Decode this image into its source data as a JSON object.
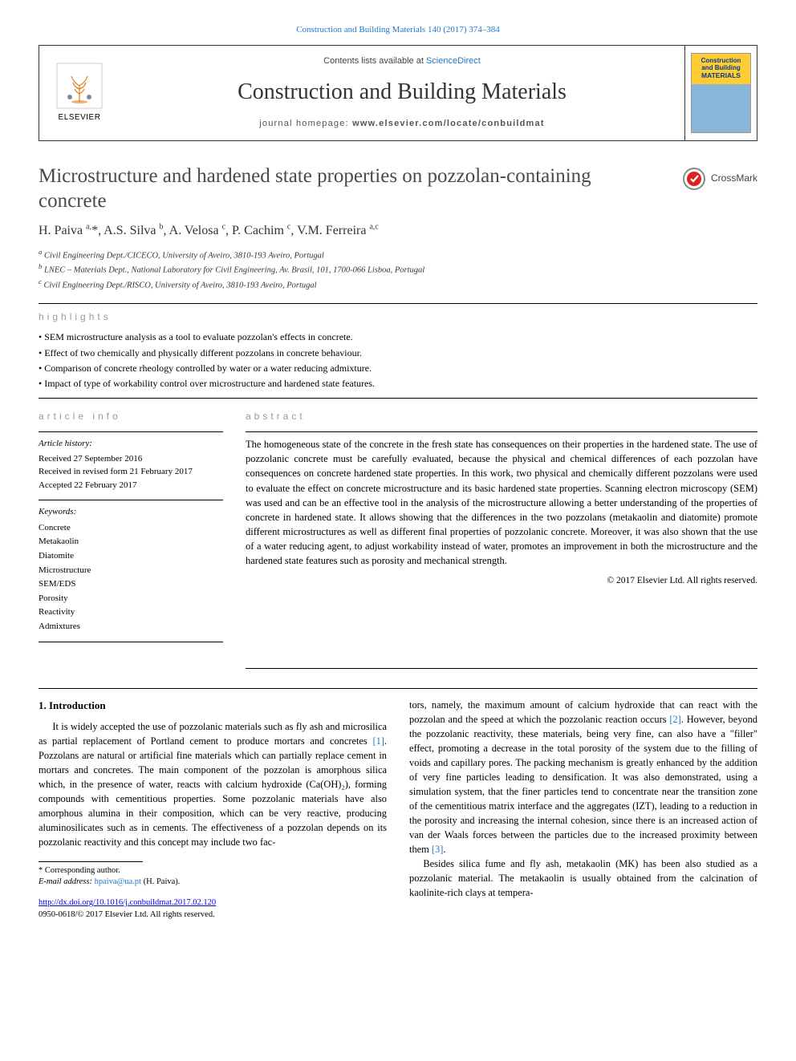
{
  "citation_header": "Construction and Building Materials 140 (2017) 374–384",
  "banner": {
    "contents_prefix": "Contents lists available at ",
    "contents_link": "ScienceDirect",
    "journal_title": "Construction and Building Materials",
    "homepage_label": "journal homepage: ",
    "homepage_url": "www.elsevier.com/locate/conbuildmat",
    "elsevier_label": "ELSEVIER",
    "cover_line1": "Construction",
    "cover_line2": "and Building",
    "cover_line3": "MATERIALS",
    "cover_title_bg": "#ffcc33",
    "cover_title_color": "#003d8f",
    "cover_body_bg": "#88b5d8"
  },
  "crossmark_label": "CrossMark",
  "title": "Microstructure and hardened state properties on pozzolan-containing concrete",
  "authors_html": "H. Paiva <sup>a,</sup>*, A.S. Silva <sup>b</sup>, A. Velosa <sup>c</sup>, P. Cachim <sup>c</sup>, V.M. Ferreira <sup>a,c</sup>",
  "affiliations": [
    "a Civil Engineering Dept./CICECO, University of Aveiro, 3810-193 Aveiro, Portugal",
    "b LNEC – Materials Dept., National Laboratory for Civil Engineering, Av. Brasil, 101, 1700-066 Lisboa, Portugal",
    "c Civil Engineering Dept./RISCO, University of Aveiro, 3810-193 Aveiro, Portugal"
  ],
  "highlights_label": "highlights",
  "highlights": [
    "SEM microstructure analysis as a tool to evaluate pozzolan's effects in concrete.",
    "Effect of two chemically and physically different pozzolans in concrete behaviour.",
    "Comparison of concrete rheology controlled by water or a water reducing admixture.",
    "Impact of type of workability control over microstructure and hardened state features."
  ],
  "article_info_label": "article info",
  "article_history_label": "Article history:",
  "article_history": [
    "Received 27 September 2016",
    "Received in revised form 21 February 2017",
    "Accepted 22 February 2017"
  ],
  "keywords_label": "Keywords:",
  "keywords": [
    "Concrete",
    "Metakaolin",
    "Diatomite",
    "Microstructure",
    "SEM/EDS",
    "Porosity",
    "Reactivity",
    "Admixtures"
  ],
  "abstract_label": "abstract",
  "abstract_text": "The homogeneous state of the concrete in the fresh state has consequences on their properties in the hardened state. The use of pozzolanic concrete must be carefully evaluated, because the physical and chemical differences of each pozzolan have consequences on concrete hardened state properties. In this work, two physical and chemically different pozzolans were used to evaluate the effect on concrete microstructure and its basic hardened state properties. Scanning electron microscopy (SEM) was used and can be an effective tool in the analysis of the microstructure allowing a better understanding of the properties of concrete in hardened state. It allows showing that the differences in the two pozzolans (metakaolin and diatomite) promote different microstructures as well as different final properties of pozzolanic concrete. Moreover, it was also shown that the use of a water reducing agent, to adjust workability instead of water, promotes an improvement in both the microstructure and the hardened state features such as porosity and mechanical strength.",
  "abstract_copyright": "© 2017 Elsevier Ltd. All rights reserved.",
  "intro_heading": "1. Introduction",
  "intro_para1": "It is widely accepted the use of pozzolanic materials such as fly ash and microsilica as partial replacement of Portland cement to produce mortars and concretes [1]. Pozzolans are natural or artificial fine materials which can partially replace cement in mortars and concretes. The main component of the pozzolan is amorphous silica which, in the presence of water, reacts with calcium hydroxide (Ca(OH)₂), forming compounds with cementitious properties. Some pozzolanic materials have also amorphous alumina in their composition, which can be very reactive, producing aluminosilicates such as in cements. The effectiveness of a pozzolan depends on its pozzolanic reactivity and this concept may include two fac-",
  "intro_para2_prefix": "tors, namely, the maximum amount of calcium hydroxide that can react with the pozzolan and the speed at which the pozzolanic reaction occurs ",
  "intro_para2_ref": "[2]",
  "intro_para2_rest": ". However, beyond the pozzolanic reactivity, these materials, being very fine, can also have a \"filler\" effect, promoting a decrease in the total porosity of the system due to the filling of voids and capillary pores. The packing mechanism is greatly enhanced by the addition of very fine particles leading to densification. It was also demonstrated, using a simulation system, that the finer particles tend to concentrate near the transition zone of the cementitious matrix interface and the aggregates (IZT), leading to a reduction in the porosity and increasing the internal cohesion, since there is an increased action of van der Waals forces between the particles due to the increased proximity between them ",
  "intro_para2_ref2": "[3]",
  "intro_para2_end": ".",
  "intro_para3": "Besides silica fume and fly ash, metakaolin (MK) has been also studied as a pozzolanic material. The metakaolin is usually obtained from the calcination of kaolinite-rich clays at tempera-",
  "corresponding_label": "* Corresponding author.",
  "email_label": "E-mail address: ",
  "email": "hpaiva@ua.pt",
  "email_owner": " (H. Paiva).",
  "doi": "http://dx.doi.org/10.1016/j.conbuildmat.2017.02.120",
  "issn_line": "0950-0618/© 2017 Elsevier Ltd. All rights reserved.",
  "colors": {
    "link": "#2277cc",
    "text": "#000000",
    "title_gray": "#4a4a4a",
    "section_label_gray": "#999999",
    "crossmark_ring": "#d22",
    "elsevier_orange": "#e67817"
  }
}
